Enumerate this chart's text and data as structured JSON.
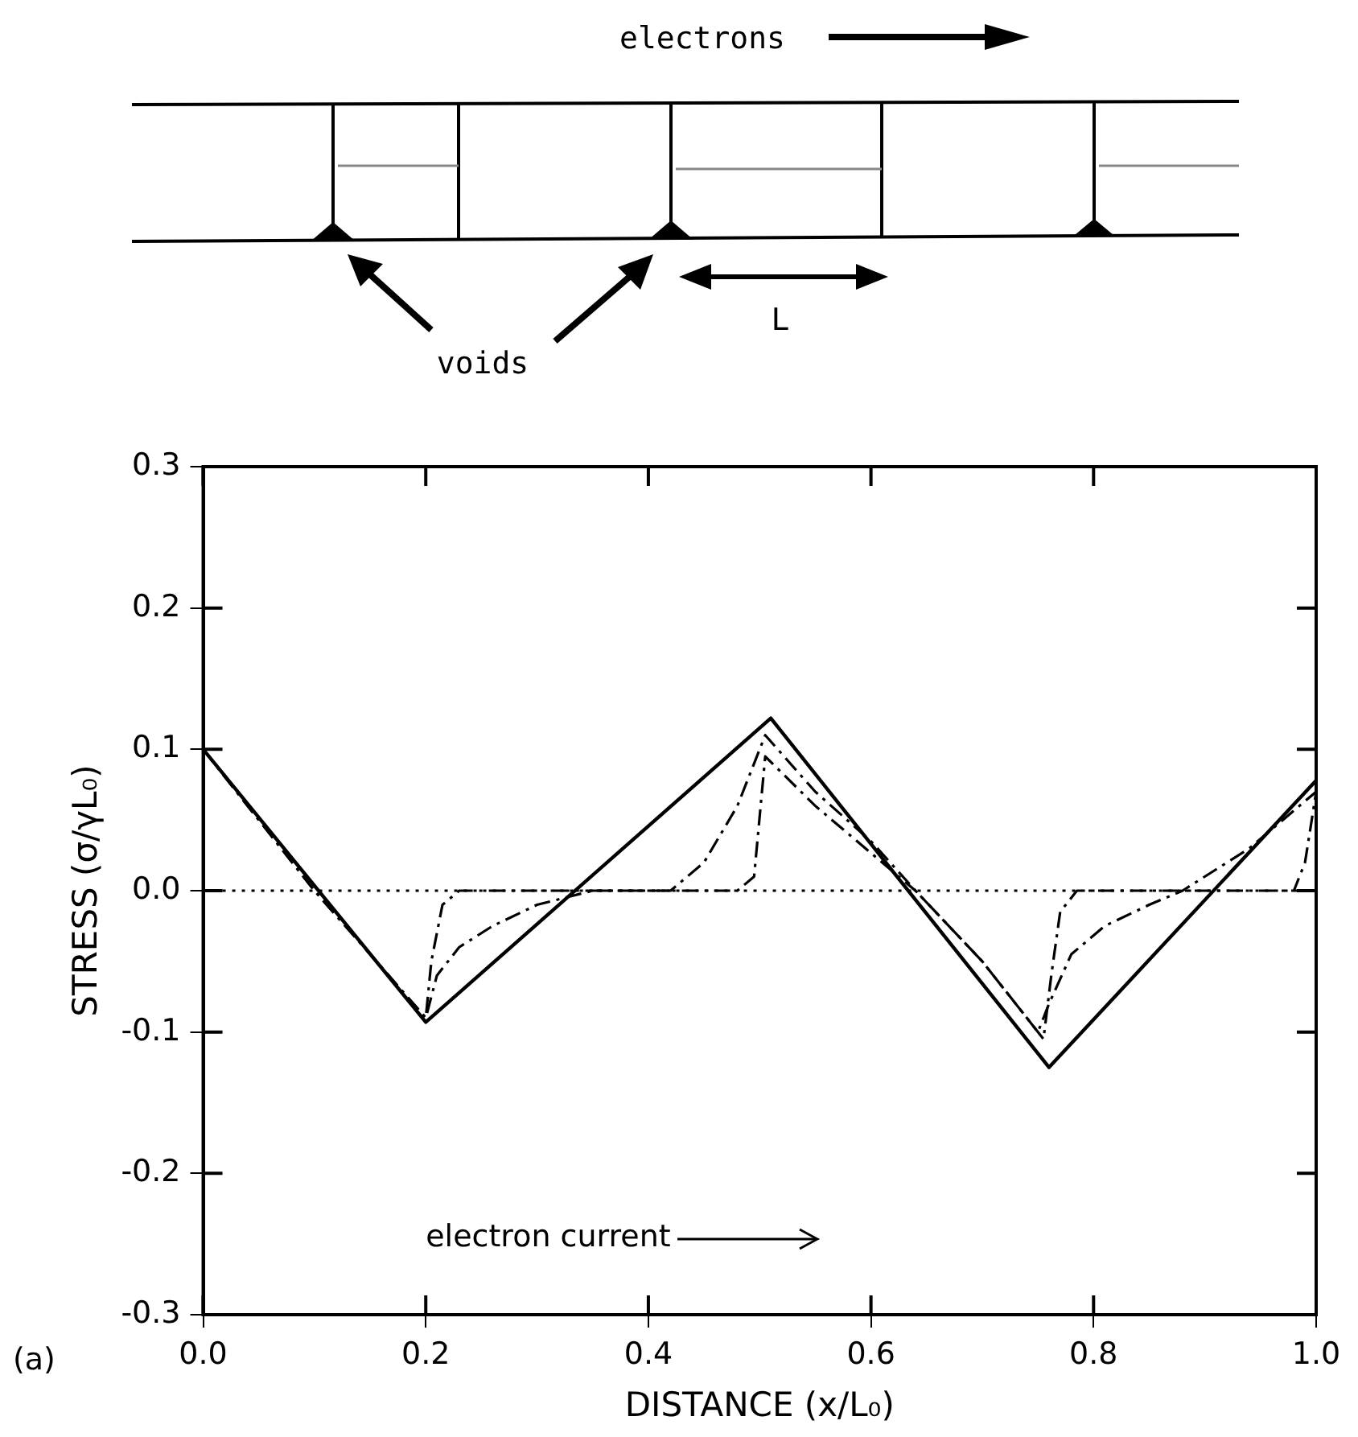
{
  "chart_data": {
    "type": "line",
    "xlabel": "DISTANCE (x/L₀)",
    "ylabel": "STRESS (σ/γL₀)",
    "annotations": [
      "electrons",
      "voids",
      "L",
      "electron current",
      "(a)"
    ],
    "xlim": [
      0,
      1
    ],
    "ylim": [
      -0.3,
      0.3
    ],
    "xticks": [
      {
        "value": 0,
        "label": "0.0"
      },
      0.2,
      0.4,
      0.6,
      0.8,
      {
        "value": 1,
        "label": "1.0"
      }
    ],
    "yticks": [
      -0.3,
      -0.2,
      -0.1,
      {
        "value": 0,
        "label": "0.0"
      },
      0.1,
      0.2,
      0.3
    ],
    "grid": false,
    "legend": false,
    "marker": "none",
    "series": [
      {
        "color": "#000000",
        "line_style": "dotted",
        "x": [
          0,
          1
        ],
        "values": [
          0,
          0
        ]
      },
      {
        "color": "#000000",
        "line_style": "solid",
        "x": [
          0,
          0.2,
          0.51,
          0.76,
          1.0
        ],
        "values": [
          0.1,
          -0.093,
          0.122,
          -0.125,
          0.078
        ]
      },
      {
        "color": "#000000",
        "line_style": "dashed",
        "x": [
          0,
          0.1,
          0.2,
          0.21,
          0.23,
          0.26,
          0.3,
          0.35,
          0.42,
          0.45,
          0.48,
          0.505,
          0.55,
          0.6,
          0.64,
          0.7,
          0.75,
          0.76,
          0.78,
          0.81,
          0.85,
          0.88,
          0.94,
          1.0
        ],
        "values": [
          0.1,
          0.0,
          -0.09,
          -0.06,
          -0.04,
          -0.025,
          -0.01,
          0,
          0,
          0.02,
          0.06,
          0.11,
          0.07,
          0.035,
          0.0,
          -0.05,
          -0.1,
          -0.08,
          -0.045,
          -0.025,
          -0.01,
          0,
          0.03,
          0.07
        ]
      },
      {
        "color": "#000000",
        "line_style": "dashed",
        "x": [
          0,
          0.1,
          0.2,
          0.205,
          0.215,
          0.23,
          0.48,
          0.495,
          0.505,
          0.55,
          0.64,
          0.7,
          0.755,
          0.762,
          0.77,
          0.785,
          0.98,
          0.99,
          1.0
        ],
        "values": [
          0.1,
          0.0,
          -0.09,
          -0.05,
          -0.01,
          0,
          0,
          0.01,
          0.095,
          0.06,
          0.0,
          -0.05,
          -0.105,
          -0.06,
          -0.015,
          0,
          0,
          0.02,
          0.07
        ]
      }
    ]
  }
}
